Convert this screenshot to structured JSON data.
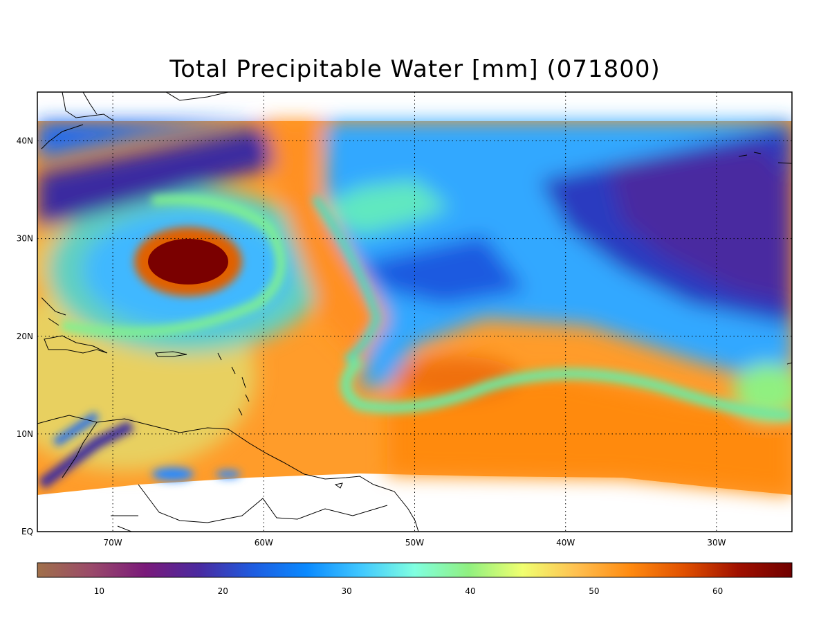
{
  "title": "Total Precipitable Water [mm]  (071800)",
  "map": {
    "lon_range": [
      -75,
      -25
    ],
    "lat_range": [
      0,
      45
    ],
    "data_lat_top": 42,
    "grid": "dotted",
    "lon_ticks": [
      "70W",
      "60W",
      "50W",
      "40W",
      "30W"
    ],
    "lat_ticks": [
      "EQ",
      "10N",
      "20N",
      "30N",
      "40N"
    ],
    "features": [
      {
        "name": "tropical-cyclone",
        "lon": -65,
        "lat": 27.5,
        "value": 65
      },
      {
        "name": "dry-band-northwest",
        "lon": -63,
        "lat": 37,
        "value": 18
      },
      {
        "name": "dry-region-east",
        "lon": -33,
        "lat": 31,
        "value": 20
      },
      {
        "name": "moist-band-ITCZ",
        "lon": -40,
        "lat": 10,
        "value": 55
      }
    ]
  },
  "colorbar": {
    "range": [
      5,
      66
    ],
    "ticks": [
      "10",
      "20",
      "30",
      "40",
      "50",
      "60"
    ],
    "stops": [
      "#a0704a",
      "#9a4a6a",
      "#7a1a7a",
      "#4a2aa0",
      "#1e5ce0",
      "#0a8aff",
      "#40c8ff",
      "#80ffe0",
      "#90f080",
      "#f0ff70",
      "#ffc050",
      "#ff8a10",
      "#e05000",
      "#a01000",
      "#700000"
    ]
  }
}
